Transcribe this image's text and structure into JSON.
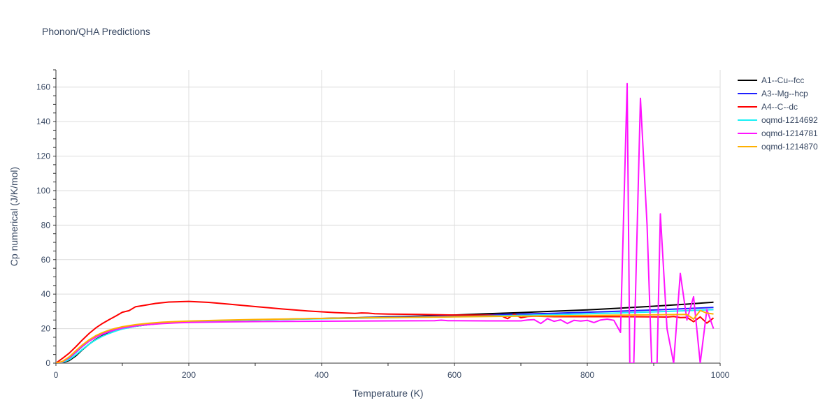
{
  "chart_data": {
    "type": "line",
    "title": "Phonon/QHA Predictions",
    "xlabel": "Temperature (K)",
    "ylabel": "Cp numerical (J/K/mol)",
    "xlim": [
      0,
      1000
    ],
    "ylim": [
      0,
      170
    ],
    "x_ticks": [
      0,
      200,
      400,
      600,
      800,
      1000
    ],
    "y_ticks": [
      0,
      20,
      40,
      60,
      80,
      100,
      120,
      140,
      160
    ],
    "grid": true,
    "legend_position": "top-right",
    "series": [
      {
        "name": "A1--Cu--fcc",
        "color": "#000000",
        "x": [
          0,
          10,
          20,
          30,
          40,
          50,
          60,
          70,
          80,
          90,
          100,
          120,
          140,
          160,
          180,
          200,
          250,
          300,
          350,
          400,
          450,
          500,
          550,
          600,
          650,
          700,
          750,
          800,
          850,
          900,
          950,
          990
        ],
        "y": [
          0,
          0.3,
          1.5,
          4.2,
          7.8,
          11.0,
          13.8,
          15.9,
          17.5,
          18.8,
          19.9,
          21.4,
          22.4,
          23.1,
          23.6,
          24.0,
          24.6,
          25.1,
          25.5,
          25.9,
          26.3,
          26.8,
          27.3,
          27.9,
          28.6,
          29.3,
          30.1,
          30.9,
          31.9,
          33.0,
          34.2,
          35.3
        ]
      },
      {
        "name": "A3--Mg--hcp",
        "color": "#1f1fff",
        "x": [
          0,
          10,
          20,
          30,
          40,
          50,
          60,
          70,
          80,
          90,
          100,
          120,
          140,
          160,
          180,
          200,
          250,
          300,
          350,
          400,
          450,
          500,
          550,
          600,
          650,
          700,
          750,
          800,
          850,
          900,
          950,
          990
        ],
        "y": [
          0,
          0.8,
          3.0,
          6.3,
          9.8,
          12.8,
          15.2,
          17.0,
          18.4,
          19.5,
          20.4,
          21.7,
          22.6,
          23.2,
          23.6,
          24.0,
          24.6,
          25.0,
          25.4,
          25.8,
          26.2,
          26.6,
          27.0,
          27.4,
          27.9,
          28.4,
          28.9,
          29.5,
          30.1,
          30.8,
          31.6,
          32.3
        ]
      },
      {
        "name": "A4--C--dc",
        "color": "#ff0000",
        "x": [
          0,
          10,
          20,
          30,
          40,
          50,
          60,
          70,
          80,
          90,
          100,
          110,
          120,
          130,
          150,
          170,
          200,
          230,
          260,
          300,
          340,
          380,
          420,
          450,
          460,
          470,
          480,
          500,
          550,
          600,
          650,
          670,
          680,
          690,
          700,
          710,
          720,
          750,
          800,
          850,
          900,
          920,
          930,
          940,
          950,
          960,
          970,
          980,
          990
        ],
        "y": [
          0,
          2.8,
          5.8,
          9.5,
          13.5,
          17.2,
          20.4,
          23.0,
          25.2,
          27.3,
          29.5,
          30.4,
          32.7,
          33.3,
          34.6,
          35.4,
          35.8,
          35.2,
          34.2,
          32.8,
          31.4,
          30.2,
          29.3,
          28.8,
          29.1,
          29.0,
          28.6,
          28.4,
          28.2,
          27.9,
          27.8,
          27.5,
          25.8,
          28.4,
          26.3,
          27.0,
          27.2,
          26.9,
          26.9,
          26.9,
          26.8,
          26.7,
          27.0,
          26.4,
          26.5,
          24.0,
          26.8,
          23.2,
          26.2
        ]
      },
      {
        "name": "oqmd-1214692",
        "color": "#19f0f5",
        "x": [
          0,
          10,
          20,
          30,
          40,
          50,
          60,
          70,
          80,
          90,
          100,
          120,
          140,
          160,
          180,
          200,
          250,
          300,
          350,
          400,
          450,
          500,
          550,
          600,
          650,
          700,
          750,
          800,
          850,
          900,
          950,
          990
        ],
        "y": [
          0,
          0.5,
          2.0,
          4.8,
          8.0,
          11.0,
          13.5,
          15.6,
          17.2,
          18.6,
          19.8,
          21.4,
          22.4,
          23.1,
          23.6,
          24.0,
          24.6,
          25.0,
          25.4,
          25.7,
          26.0,
          26.3,
          26.6,
          26.9,
          27.3,
          27.7,
          28.1,
          28.6,
          29.1,
          29.7,
          30.4,
          31.0
        ]
      },
      {
        "name": "oqmd-1214781",
        "color": "#ff14ff",
        "x": [
          0,
          10,
          20,
          30,
          40,
          50,
          60,
          70,
          80,
          90,
          100,
          120,
          140,
          160,
          180,
          200,
          250,
          300,
          400,
          500,
          570,
          580,
          590,
          600,
          650,
          700,
          710,
          720,
          730,
          740,
          750,
          760,
          770,
          780,
          790,
          800,
          810,
          820,
          830,
          840,
          850,
          860,
          864,
          870,
          880,
          890,
          897,
          905,
          910,
          920,
          930,
          940,
          950,
          960,
          970,
          980,
          990
        ],
        "y": [
          0,
          0.8,
          3.2,
          6.6,
          10.0,
          12.8,
          15.0,
          16.8,
          18.2,
          19.4,
          20.3,
          21.6,
          22.4,
          22.9,
          23.3,
          23.6,
          23.9,
          24.1,
          24.3,
          24.5,
          24.6,
          24.9,
          24.6,
          24.6,
          24.5,
          24.5,
          25.0,
          25.2,
          23.0,
          25.8,
          24.2,
          25.1,
          23.0,
          24.8,
          24.4,
          24.8,
          23.5,
          25.0,
          25.5,
          24.8,
          17.8,
          162.0,
          0,
          0,
          153.5,
          80.0,
          0,
          0,
          86.5,
          20.0,
          0,
          52.0,
          25.0,
          38.5,
          0,
          31.0,
          20.0
        ]
      },
      {
        "name": "oqmd-1214870",
        "color": "#ffb000",
        "x": [
          0,
          10,
          20,
          30,
          40,
          50,
          60,
          70,
          80,
          90,
          100,
          120,
          140,
          160,
          180,
          200,
          250,
          300,
          350,
          400,
          450,
          500,
          550,
          600,
          650,
          700,
          750,
          800,
          850,
          900,
          950,
          960,
          970,
          980,
          990
        ],
        "y": [
          0,
          1.0,
          3.6,
          7.2,
          10.6,
          13.5,
          15.9,
          17.7,
          19.1,
          20.2,
          21.1,
          22.3,
          23.1,
          23.7,
          24.1,
          24.4,
          24.9,
          25.3,
          25.6,
          25.9,
          26.2,
          26.4,
          26.6,
          26.8,
          27.0,
          27.2,
          27.4,
          27.6,
          27.8,
          28.0,
          28.2,
          25.5,
          30.5,
          29.0,
          28.5
        ]
      }
    ]
  }
}
